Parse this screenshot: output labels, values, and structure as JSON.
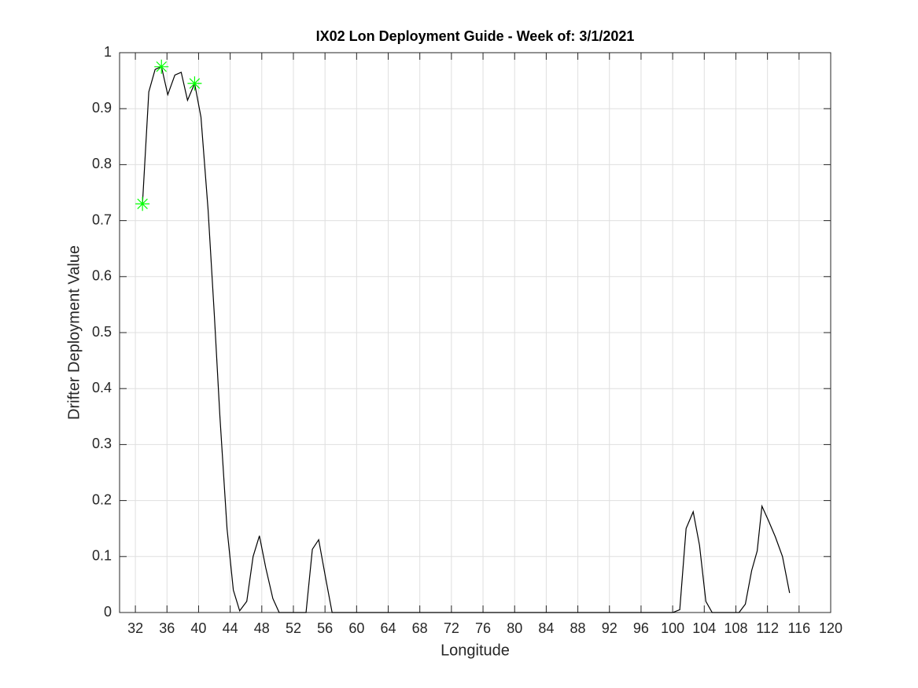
{
  "chart_data": {
    "type": "line",
    "title": "IX02 Lon Deployment Guide - Week of: 3/1/2021",
    "xlabel": "Longitude",
    "ylabel": "Drifter Deployment Value",
    "xlim": [
      30,
      120
    ],
    "ylim": [
      0,
      1
    ],
    "xticks": [
      32,
      36,
      40,
      44,
      48,
      52,
      56,
      60,
      64,
      68,
      72,
      76,
      80,
      84,
      88,
      92,
      96,
      100,
      104,
      108,
      112,
      116,
      120
    ],
    "yticks": [
      0,
      0.1,
      0.2,
      0.3,
      0.4,
      0.5,
      0.6,
      0.7,
      0.8,
      0.9,
      1
    ],
    "grid": true,
    "series": [
      {
        "color": "#000000",
        "marker": "none",
        "x": [
          32.9,
          33.7,
          34.5,
          35.3,
          36.1,
          37.0,
          37.8,
          38.6,
          39.5,
          40.3,
          41.2,
          42.0,
          42.7,
          43.6,
          44.4,
          45.2,
          46.1,
          46.9,
          47.7,
          48.5,
          49.4,
          50.2,
          53.6,
          54.4,
          55.2,
          56.1,
          56.9,
          100.0,
          100.9,
          101.7,
          102.6,
          103.4,
          104.2,
          105.0,
          108.4,
          109.2,
          110.0,
          110.7,
          111.3,
          112.1,
          113.0,
          113.9,
          114.8
        ],
        "values": [
          0.73,
          0.93,
          0.97,
          0.975,
          0.925,
          0.96,
          0.965,
          0.915,
          0.945,
          0.885,
          0.72,
          0.53,
          0.35,
          0.15,
          0.04,
          0.003,
          0.02,
          0.1,
          0.137,
          0.08,
          0.025,
          0,
          0,
          0.113,
          0.13,
          0.06,
          0,
          0,
          0.005,
          0.15,
          0.18,
          0.12,
          0.02,
          0,
          0,
          0.015,
          0.075,
          0.11,
          0.19,
          0.165,
          0.135,
          0.1,
          0.035
        ]
      },
      {
        "color": "#00ff00",
        "marker": "star",
        "x": [
          32.9,
          35.3,
          39.5
        ],
        "values": [
          0.73,
          0.975,
          0.945
        ]
      }
    ]
  }
}
